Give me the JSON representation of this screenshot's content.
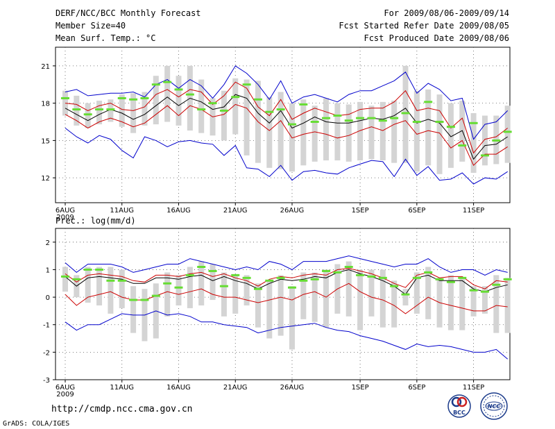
{
  "header": {
    "title": "DERF/NCC/BCC Monthly Forecast",
    "member_size": "Member Size=40",
    "variable": "Mean Surf. Temp.: °C",
    "period": "For 2009/08/06-2009/09/14",
    "fcst_start": "Fcst Started Refer Date 2009/08/05",
    "fcst_produced": "Fcst Produced Date 2009/08/06"
  },
  "footer": {
    "url": "http://cmdp.ncc.cma.gov.cn",
    "grads": "GrADS: COLA/IGES",
    "logo_left": "BCC",
    "logo_right": "NCC"
  },
  "colors": {
    "ensemble_mean": "#000000",
    "inner_spread": "#cc0000",
    "outer_spread": "#0000cc",
    "member_mode": "#66dd33",
    "range_bar": "#d4d4d4"
  },
  "chart_data": [
    {
      "type": "line",
      "name": "temperature",
      "title": "Mean Surf. Temp.: °C",
      "x_labels": [
        "6AUG",
        "11AUG",
        "16AUG",
        "21AUG",
        "26AUG",
        "1SEP",
        "6SEP",
        "11SEP"
      ],
      "x_label_days": [
        0,
        5,
        10,
        15,
        20,
        26,
        31,
        36
      ],
      "x_sublabel": "2009",
      "ylim": [
        10,
        22.5
      ],
      "yticks": [
        12,
        15,
        18,
        21
      ],
      "days": 40,
      "series": [
        {
          "name": "blue-upper",
          "values": [
            18.9,
            19.1,
            18.6,
            18.7,
            18.8,
            18.8,
            18.9,
            18.5,
            19.5,
            19.9,
            19.2,
            19.9,
            19.4,
            18.4,
            19.5,
            21.0,
            20.4,
            19.5,
            18.3,
            19.8,
            18.0,
            18.5,
            18.7,
            18.4,
            18.1,
            18.7,
            19.0,
            19.0,
            19.4,
            19.8,
            20.5,
            18.8,
            19.6,
            19.1,
            18.2,
            18.4,
            15.1,
            16.3,
            16.5,
            17.4
          ]
        },
        {
          "name": "red-upper",
          "values": [
            18.0,
            17.9,
            17.4,
            17.8,
            18.0,
            17.5,
            17.4,
            17.7,
            18.7,
            19.1,
            18.5,
            19.1,
            18.9,
            17.9,
            18.6,
            19.7,
            19.2,
            17.7,
            17.0,
            18.3,
            16.7,
            17.2,
            17.6,
            17.3,
            17.0,
            17.1,
            17.5,
            17.6,
            17.6,
            18.1,
            19.0,
            17.4,
            17.6,
            17.4,
            16.0,
            16.8,
            14.0,
            15.1,
            15.3,
            16.0
          ]
        },
        {
          "name": "black-mean",
          "values": [
            17.6,
            17.1,
            16.6,
            17.1,
            17.5,
            17.2,
            16.7,
            17.1,
            17.8,
            18.5,
            17.8,
            18.4,
            18.1,
            17.5,
            17.7,
            18.7,
            18.4,
            17.2,
            16.4,
            17.4,
            16.0,
            16.4,
            16.9,
            16.5,
            16.4,
            16.4,
            16.6,
            16.8,
            16.7,
            17.0,
            17.6,
            16.4,
            16.7,
            16.4,
            15.3,
            15.8,
            13.5,
            14.6,
            14.7,
            15.3
          ]
        },
        {
          "name": "red-lower",
          "values": [
            17.1,
            16.6,
            16.0,
            16.5,
            16.8,
            16.5,
            16.1,
            16.4,
            17.1,
            17.8,
            17.0,
            17.8,
            17.5,
            16.9,
            17.1,
            17.9,
            17.6,
            16.5,
            15.8,
            16.6,
            15.2,
            15.5,
            15.7,
            15.5,
            15.2,
            15.4,
            15.8,
            16.1,
            15.8,
            16.3,
            16.6,
            15.5,
            15.8,
            15.6,
            14.4,
            15.0,
            13.0,
            13.9,
            13.9,
            14.5
          ]
        },
        {
          "name": "blue-lower",
          "values": [
            16.0,
            15.3,
            14.8,
            15.4,
            15.1,
            14.2,
            13.6,
            15.3,
            15.0,
            14.5,
            14.9,
            15.0,
            14.8,
            14.7,
            13.8,
            14.6,
            12.8,
            12.7,
            12.1,
            13.0,
            11.8,
            12.5,
            12.6,
            12.4,
            12.3,
            12.8,
            13.1,
            13.4,
            13.3,
            12.1,
            13.5,
            12.2,
            12.9,
            11.8,
            11.9,
            12.4,
            11.5,
            12.0,
            11.9,
            12.5
          ]
        }
      ],
      "mode_markers": [
        18.4,
        17.5,
        17.1,
        17.5,
        17.5,
        18.4,
        18.3,
        18.4,
        19.5,
        19.7,
        19.1,
        18.7,
        17.5,
        18.0,
        17.4,
        18.5,
        19.5,
        18.3,
        17.3,
        17.5,
        16.3,
        17.9,
        16.5,
        16.8,
        17.0,
        16.6,
        16.8,
        16.8,
        16.6,
        16.8,
        17.2,
        16.5,
        18.1,
        16.5,
        16.1,
        14.6,
        16.4,
        13.8,
        15.0,
        15.7
      ],
      "range_bars": [
        [
          17.0,
          19.0
        ],
        [
          16.2,
          18.6
        ],
        [
          16.0,
          18.0
        ],
        [
          16.3,
          18.2
        ],
        [
          16.5,
          18.3
        ],
        [
          16.1,
          18.7
        ],
        [
          15.6,
          18.8
        ],
        [
          16.2,
          18.9
        ],
        [
          16.3,
          20.2
        ],
        [
          16.5,
          21.0
        ],
        [
          16.2,
          20.2
        ],
        [
          15.8,
          21.0
        ],
        [
          15.6,
          19.9
        ],
        [
          15.4,
          18.4
        ],
        [
          15.0,
          19.0
        ],
        [
          15.5,
          20.0
        ],
        [
          13.8,
          19.9
        ],
        [
          13.2,
          19.8
        ],
        [
          12.8,
          18.5
        ],
        [
          12.7,
          18.9
        ],
        [
          12.5,
          18.0
        ],
        [
          13.0,
          18.3
        ],
        [
          13.3,
          17.8
        ],
        [
          13.4,
          18.4
        ],
        [
          13.4,
          18.0
        ],
        [
          13.3,
          17.9
        ],
        [
          13.4,
          18.1
        ],
        [
          13.5,
          17.8
        ],
        [
          13.4,
          18.1
        ],
        [
          13.2,
          18.2
        ],
        [
          13.2,
          21.0
        ],
        [
          12.5,
          19.0
        ],
        [
          13.0,
          19.1
        ],
        [
          12.3,
          18.7
        ],
        [
          12.8,
          18.0
        ],
        [
          13.3,
          18.2
        ],
        [
          12.4,
          17.2
        ],
        [
          13.0,
          17.0
        ],
        [
          13.1,
          17.0
        ],
        [
          13.2,
          17.8
        ]
      ]
    },
    {
      "type": "line",
      "name": "precipitation",
      "title": "Prec.: log(mm/d)",
      "x_labels": [
        "6AUG",
        "11AUG",
        "16AUG",
        "21AUG",
        "26AUG",
        "1SEP",
        "6SEP",
        "11SEP"
      ],
      "x_label_days": [
        0,
        5,
        10,
        15,
        20,
        26,
        31,
        36
      ],
      "x_sublabel": "2009",
      "ylim": [
        -3,
        2.5
      ],
      "yticks": [
        -3,
        -2,
        -1,
        0,
        1,
        2
      ],
      "days": 40,
      "series": [
        {
          "name": "blue-upper",
          "values": [
            1.25,
            0.9,
            1.2,
            1.2,
            1.2,
            1.1,
            0.9,
            1.0,
            1.1,
            1.2,
            1.2,
            1.4,
            1.3,
            1.2,
            1.1,
            1.0,
            1.1,
            1.0,
            1.3,
            1.2,
            1.0,
            1.3,
            1.3,
            1.3,
            1.4,
            1.5,
            1.4,
            1.3,
            1.2,
            1.1,
            1.2,
            1.2,
            1.4,
            1.1,
            0.9,
            1.0,
            1.0,
            0.8,
            1.0,
            0.9
          ]
        },
        {
          "name": "red-upper",
          "values": [
            0.85,
            0.55,
            0.8,
            0.85,
            0.8,
            0.75,
            0.6,
            0.55,
            0.8,
            0.8,
            0.75,
            0.85,
            0.9,
            0.75,
            0.85,
            0.7,
            0.6,
            0.4,
            0.65,
            0.75,
            0.7,
            0.8,
            0.85,
            0.8,
            1.0,
            1.05,
            0.95,
            0.85,
            0.7,
            0.5,
            0.35,
            0.8,
            0.9,
            0.7,
            0.75,
            0.75,
            0.45,
            0.3,
            0.6,
            0.55
          ]
        },
        {
          "name": "black-mean",
          "values": [
            0.75,
            0.4,
            0.7,
            0.75,
            0.7,
            0.65,
            0.5,
            0.5,
            0.7,
            0.7,
            0.65,
            0.75,
            0.8,
            0.6,
            0.75,
            0.6,
            0.5,
            0.3,
            0.5,
            0.65,
            0.6,
            0.65,
            0.75,
            0.7,
            0.9,
            1.0,
            0.85,
            0.75,
            0.6,
            0.4,
            0.1,
            0.7,
            0.8,
            0.6,
            0.6,
            0.6,
            0.3,
            0.2,
            0.35,
            0.45
          ]
        },
        {
          "name": "red-lower",
          "values": [
            0.1,
            -0.3,
            0.0,
            0.1,
            0.2,
            0.0,
            -0.1,
            -0.1,
            0.05,
            0.2,
            0.1,
            0.2,
            0.3,
            0.1,
            0.0,
            0.0,
            -0.1,
            -0.2,
            -0.1,
            0.0,
            -0.1,
            0.1,
            0.2,
            0.0,
            0.3,
            0.5,
            0.2,
            0.0,
            -0.1,
            -0.3,
            -0.6,
            -0.3,
            0.0,
            -0.2,
            -0.3,
            -0.4,
            -0.5,
            -0.5,
            -0.3,
            -0.35
          ]
        },
        {
          "name": "blue-lower",
          "values": [
            -0.9,
            -1.2,
            -1.0,
            -1.0,
            -0.8,
            -0.6,
            -0.65,
            -0.65,
            -0.5,
            -0.65,
            -0.6,
            -0.7,
            -0.9,
            -0.9,
            -1.0,
            -1.05,
            -1.1,
            -1.3,
            -1.2,
            -1.1,
            -1.05,
            -1.0,
            -0.95,
            -1.1,
            -1.2,
            -1.25,
            -1.4,
            -1.5,
            -1.6,
            -1.75,
            -1.9,
            -1.7,
            -1.8,
            -1.75,
            -1.8,
            -1.9,
            -2.0,
            -2.0,
            -1.9,
            -2.25
          ]
        }
      ],
      "mode_markers": [
        0.75,
        0.65,
        1.0,
        1.0,
        0.6,
        0.6,
        -0.1,
        -0.1,
        0.05,
        0.5,
        0.35,
        0.8,
        1.1,
        0.95,
        0.4,
        0.8,
        0.7,
        0.3,
        0.6,
        0.7,
        0.35,
        0.6,
        0.65,
        0.95,
        0.9,
        1.1,
        0.8,
        0.75,
        0.7,
        0.4,
        0.1,
        0.7,
        0.9,
        0.65,
        0.55,
        0.7,
        0.25,
        0.2,
        0.45,
        0.65
      ],
      "range_bars": [
        [
          0.2,
          1.1
        ],
        [
          0.0,
          0.8
        ],
        [
          -0.2,
          1.1
        ],
        [
          -0.3,
          1.1
        ],
        [
          -0.6,
          1.1
        ],
        [
          -0.4,
          1.0
        ],
        [
          -1.3,
          0.4
        ],
        [
          -1.6,
          0.3
        ],
        [
          -1.5,
          0.5
        ],
        [
          -0.7,
          0.9
        ],
        [
          -0.3,
          0.8
        ],
        [
          -0.4,
          1.1
        ],
        [
          -0.3,
          1.3
        ],
        [
          -0.1,
          1.2
        ],
        [
          -0.7,
          0.9
        ],
        [
          -0.6,
          0.8
        ],
        [
          -0.3,
          0.8
        ],
        [
          -1.1,
          0.5
        ],
        [
          -1.5,
          0.6
        ],
        [
          -1.4,
          0.8
        ],
        [
          -1.9,
          0.4
        ],
        [
          -0.8,
          0.9
        ],
        [
          -0.9,
          0.9
        ],
        [
          -1.1,
          1.0
        ],
        [
          -0.6,
          1.2
        ],
        [
          -0.7,
          1.3
        ],
        [
          -1.2,
          1.0
        ],
        [
          -0.7,
          1.0
        ],
        [
          -1.1,
          1.0
        ],
        [
          -1.1,
          0.6
        ],
        [
          -0.3,
          0.3
        ],
        [
          -0.6,
          0.9
        ],
        [
          -0.8,
          1.1
        ],
        [
          -1.1,
          0.7
        ],
        [
          -1.2,
          0.8
        ],
        [
          -1.2,
          0.7
        ],
        [
          -0.7,
          0.4
        ],
        [
          -0.6,
          0.4
        ],
        [
          -1.3,
          0.8
        ],
        [
          -1.3,
          0.7
        ]
      ]
    }
  ]
}
